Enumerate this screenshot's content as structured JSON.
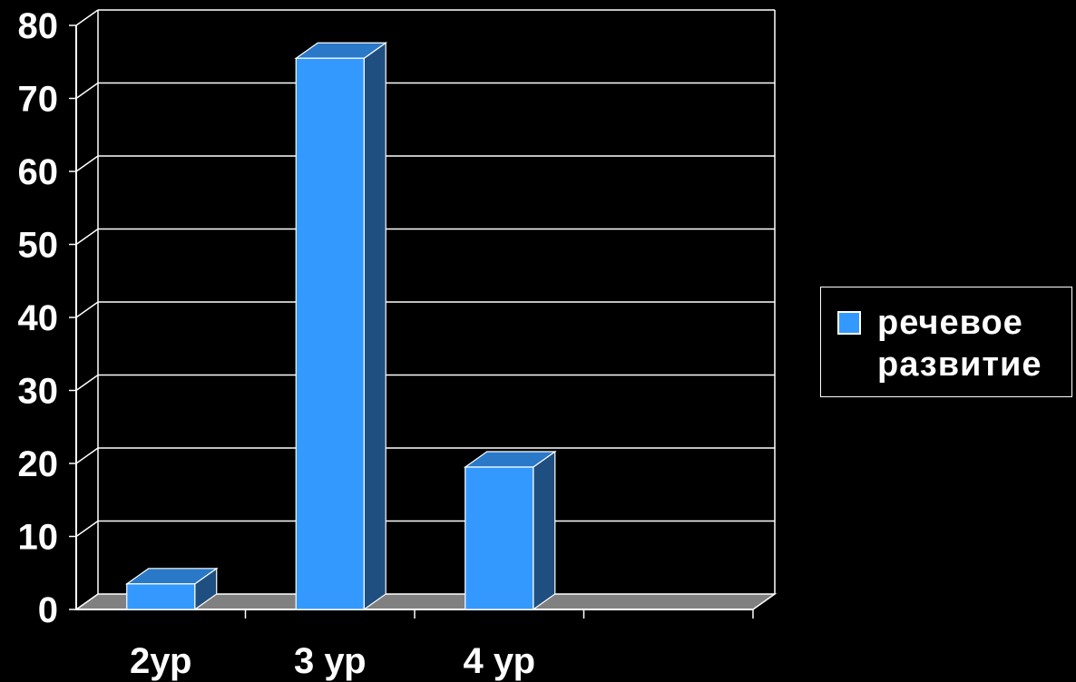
{
  "chart_data": {
    "type": "bar",
    "categories": [
      "2ур",
      "3 ур",
      "4 ур",
      ""
    ],
    "series": [
      {
        "name": "речевое развитие",
        "values": [
          3.5,
          75.5,
          19.5,
          null
        ],
        "color": "#3399ff"
      }
    ],
    "ylim": [
      0,
      80
    ],
    "yticks": [
      0,
      10,
      20,
      30,
      40,
      50,
      60,
      70,
      80
    ],
    "grid": true,
    "legend_position": "right",
    "style": "3d-column",
    "background": "#000000"
  }
}
